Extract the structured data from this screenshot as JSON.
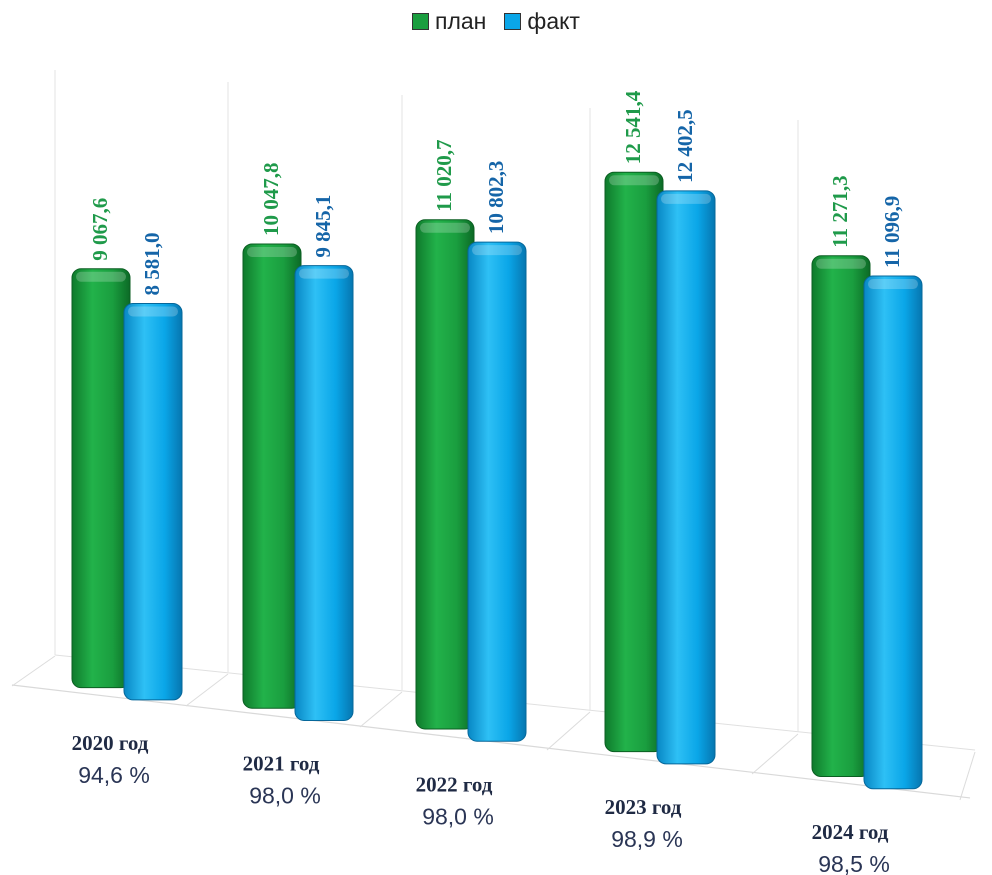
{
  "chart_data": {
    "type": "bar",
    "categories": [
      "2020 год",
      "2021 год",
      "2022 год",
      "2023 год",
      "2024 год"
    ],
    "percent_labels": [
      "94,6 %",
      "98,0 %",
      "98,0 %",
      "98,9 %",
      "98,5 %"
    ],
    "series": [
      {
        "name": "план",
        "values": [
          9067.6,
          10047.8,
          11020.7,
          12541.4,
          11271.3
        ],
        "labels": [
          "9 067,6",
          "10 047,8",
          "11 020,7",
          "12 541,4",
          "11 271,3"
        ],
        "color": "#1a9e3f",
        "label_color": "#1f9a4a"
      },
      {
        "name": "факт",
        "values": [
          8581.0,
          9845.1,
          10802.3,
          12402.5,
          11096.9
        ],
        "labels": [
          "8 581,0",
          "9 845,1",
          "10 802,3",
          "12 402,5",
          "11 096,9"
        ],
        "color": "#0aa6e8",
        "label_color": "#1565a8"
      }
    ],
    "legend_position": "top",
    "category_label_color": "#1f2a44",
    "percent_label_color": "#2a3555",
    "grid": false
  }
}
